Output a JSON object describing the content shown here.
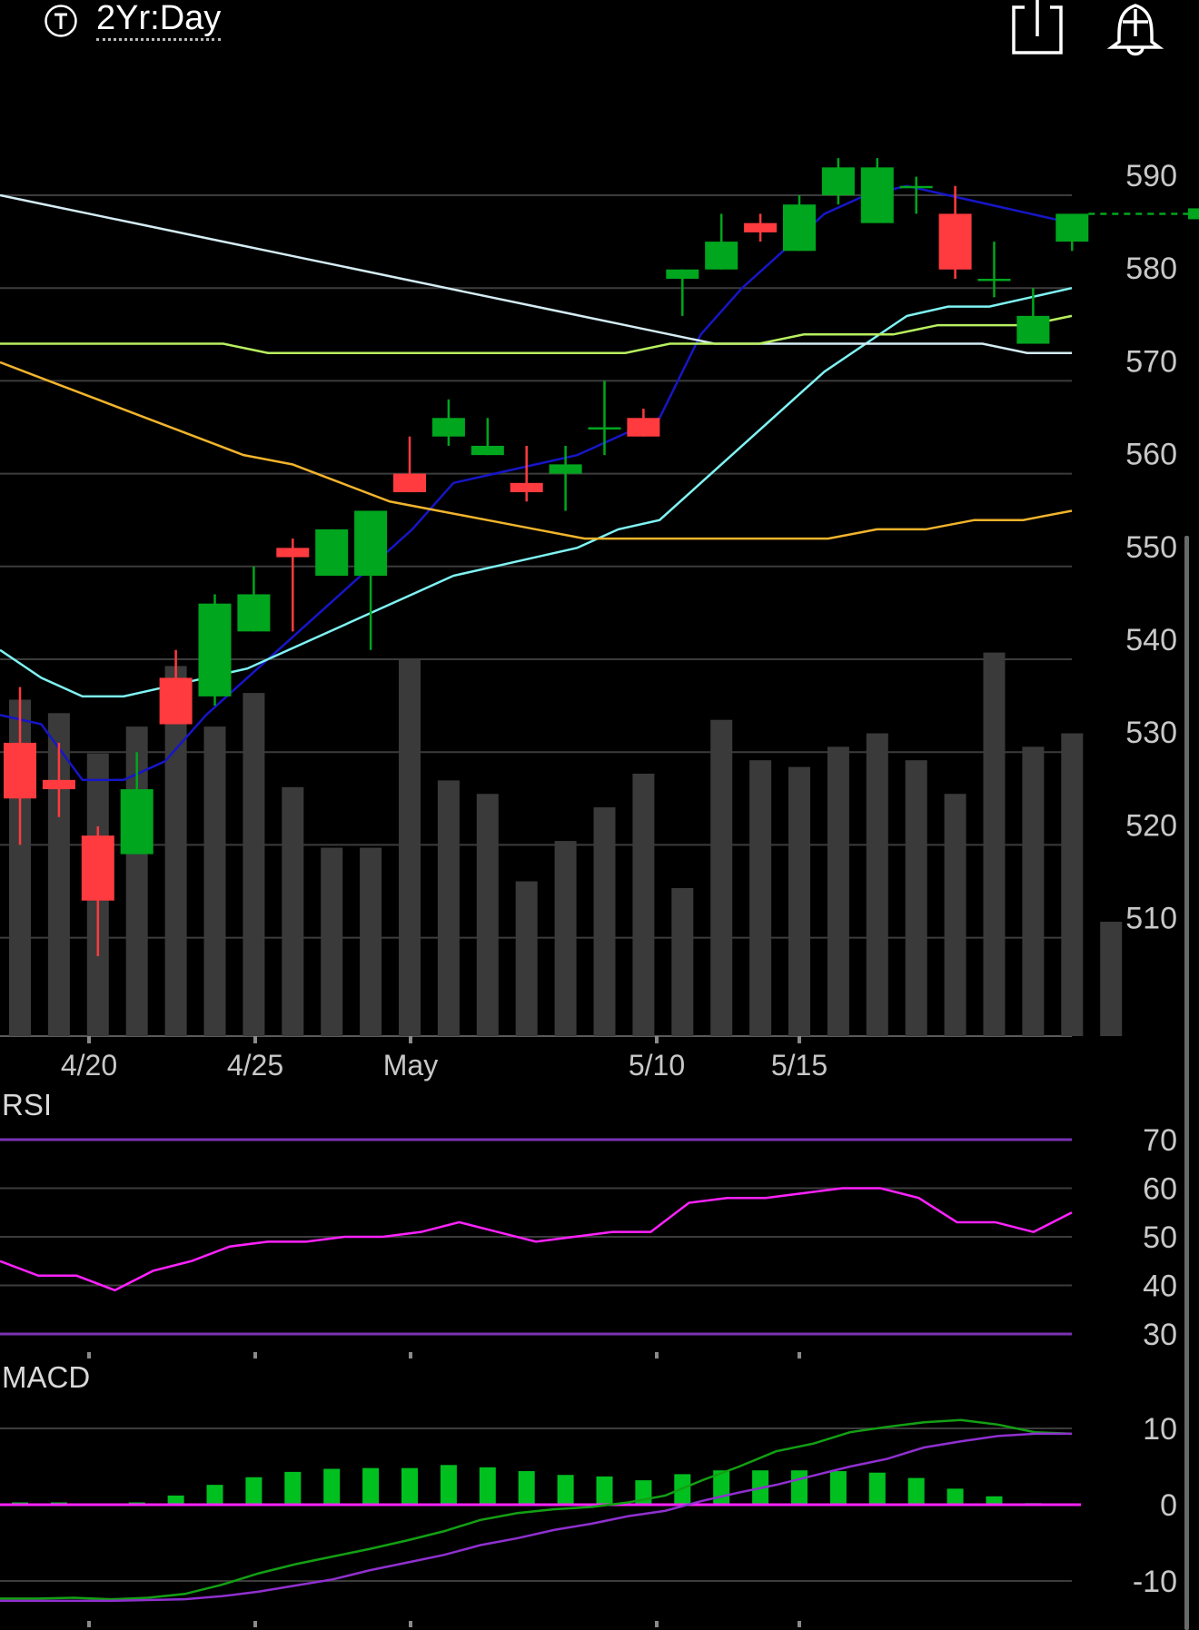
{
  "header": {
    "timeframe_icon": "t-circle-icon",
    "timeframe_label": "2Yr:Day",
    "share_icon": "share-icon",
    "alert_icon": "add-alert-bell-icon"
  },
  "colors": {
    "up": "#00a61e",
    "down": "#ff3b3f",
    "volume": "#3a3a3a",
    "ma_blue": "#1616c8",
    "ma_cyan": "#7ff3f3",
    "ma_white": "#d4ecf4",
    "ma_lime": "#b8f060",
    "ma_orange": "#f2b42c",
    "rsi_line": "#ff22ff",
    "rsi_bounds": "#7a32b4",
    "macd_line": "#13a013",
    "signal_line": "#9030d0",
    "macd_hist": "#00c020",
    "macd_zero": "#ff22ff"
  },
  "chart_data": [
    {
      "type": "candlestick",
      "title": "",
      "x_ticks": [
        "4/20",
        "4/25",
        "May",
        "5/10",
        "5/15"
      ],
      "y_ticks": [
        510,
        520,
        530,
        540,
        550,
        560,
        570,
        580,
        590
      ],
      "ylim": [
        500,
        600
      ],
      "grid": true,
      "last_price_line": 588,
      "candles": [
        {
          "o": 531,
          "h": 537,
          "l": 520,
          "c": 525
        },
        {
          "o": 527,
          "h": 531,
          "l": 523,
          "c": 526
        },
        {
          "o": 521,
          "h": 522,
          "l": 508,
          "c": 514
        },
        {
          "o": 519,
          "h": 530,
          "l": 519,
          "c": 526
        },
        {
          "o": 538,
          "h": 541,
          "l": 534,
          "c": 533
        },
        {
          "o": 536,
          "h": 547,
          "l": 535,
          "c": 546
        },
        {
          "o": 543,
          "h": 550,
          "l": 543,
          "c": 547
        },
        {
          "o": 552,
          "h": 553,
          "l": 543,
          "c": 551
        },
        {
          "o": 549,
          "h": 554,
          "l": 549,
          "c": 554
        },
        {
          "o": 549,
          "h": 556,
          "l": 541,
          "c": 556
        },
        {
          "o": 560,
          "h": 564,
          "l": 558,
          "c": 558
        },
        {
          "o": 564,
          "h": 568,
          "l": 563,
          "c": 566
        },
        {
          "o": 562,
          "h": 566,
          "l": 562,
          "c": 563
        },
        {
          "o": 559,
          "h": 563,
          "l": 557,
          "c": 558
        },
        {
          "o": 560,
          "h": 563,
          "l": 556,
          "c": 561
        },
        {
          "o": 565,
          "h": 570,
          "l": 562,
          "c": 565
        },
        {
          "o": 566,
          "h": 567,
          "l": 564,
          "c": 564
        },
        {
          "o": 581,
          "h": 582,
          "l": 577,
          "c": 582
        },
        {
          "o": 582,
          "h": 588,
          "l": 582,
          "c": 585
        },
        {
          "o": 587,
          "h": 588,
          "l": 585,
          "c": 586
        },
        {
          "o": 584,
          "h": 590,
          "l": 584,
          "c": 589
        },
        {
          "o": 590,
          "h": 594,
          "l": 589,
          "c": 593
        },
        {
          "o": 587,
          "h": 594,
          "l": 587,
          "c": 593
        },
        {
          "o": 591,
          "h": 592,
          "l": 588,
          "c": 591
        },
        {
          "o": 588,
          "h": 591,
          "l": 581,
          "c": 582
        },
        {
          "o": 581,
          "h": 585,
          "l": 579,
          "c": 581
        },
        {
          "o": 574,
          "h": 580,
          "l": 574,
          "c": 577
        },
        {
          "o": 585,
          "h": 588,
          "l": 584,
          "c": 588
        }
      ],
      "volume_pct": [
        50,
        48,
        42,
        46,
        55,
        46,
        51,
        37,
        28,
        28,
        56,
        38,
        36,
        23,
        29,
        34,
        39,
        22,
        47,
        41,
        40,
        43,
        45,
        41,
        36,
        57,
        43,
        45,
        17
      ],
      "moving_averages": [
        {
          "color_key": "ma_blue",
          "values": [
            534,
            533,
            527,
            527,
            529,
            534,
            538,
            542,
            546,
            550,
            554,
            559,
            560,
            561,
            562,
            564,
            566,
            575,
            580,
            584,
            588,
            590,
            591,
            590,
            589,
            588,
            587
          ]
        },
        {
          "color_key": "ma_cyan",
          "values": [
            541,
            538,
            536,
            536,
            537,
            538,
            539,
            541,
            543,
            545,
            547,
            549,
            550,
            551,
            552,
            554,
            555,
            559,
            563,
            567,
            571,
            574,
            577,
            578,
            578,
            579,
            580
          ]
        },
        {
          "color_key": "ma_white",
          "values": [
            590,
            589,
            588,
            587,
            586,
            585,
            584,
            583,
            582,
            581,
            580,
            579,
            578,
            577,
            576,
            575,
            574,
            574,
            574,
            574,
            574,
            574,
            574,
            573,
            573
          ]
        },
        {
          "color_key": "ma_lime",
          "values": [
            574,
            574,
            574,
            574,
            574,
            574,
            573,
            573,
            573,
            573,
            573,
            573,
            573,
            573,
            573,
            574,
            574,
            574,
            575,
            575,
            575,
            576,
            576,
            576,
            577
          ]
        },
        {
          "color_key": "ma_orange",
          "values": [
            572,
            570,
            568,
            566,
            564,
            562,
            561,
            559,
            557,
            556,
            555,
            554,
            553,
            553,
            553,
            553,
            553,
            553,
            554,
            554,
            555,
            555,
            556
          ]
        }
      ]
    },
    {
      "type": "line",
      "title": "RSI",
      "y_ticks": [
        30,
        40,
        50,
        60,
        70
      ],
      "ylim": [
        30,
        70
      ],
      "grid": true,
      "bounds": [
        30,
        70
      ],
      "values": [
        45,
        42,
        42,
        39,
        43,
        45,
        48,
        49,
        49,
        50,
        50,
        51,
        53,
        51,
        49,
        50,
        51,
        51,
        57,
        58,
        58,
        59,
        60,
        60,
        58,
        53,
        53,
        51,
        55
      ]
    },
    {
      "type": "bar",
      "title": "MACD",
      "y_ticks": [
        10,
        0,
        -10
      ],
      "ylim": [
        -15,
        15
      ],
      "grid": true,
      "histogram": [
        0.3,
        0.3,
        0,
        0.3,
        1.2,
        2.6,
        3.6,
        4.3,
        4.7,
        4.8,
        4.8,
        5.2,
        4.9,
        4.4,
        3.9,
        3.7,
        3.2,
        4.0,
        4.5,
        4.5,
        4.5,
        4.4,
        4.2,
        3.5,
        2.1,
        1.1,
        0.2,
        0.1
      ],
      "macd": [
        -12.3,
        -12.3,
        -12.2,
        -12.4,
        -12.2,
        -11.7,
        -10.5,
        -9.0,
        -7.8,
        -6.8,
        -5.8,
        -4.7,
        -3.5,
        -2.0,
        -1.1,
        -0.6,
        -0.3,
        0.3,
        1.2,
        3.2,
        5.0,
        7.0,
        8.0,
        9.5,
        10.2,
        10.8,
        11.1,
        10.5,
        9.5,
        9.3
      ],
      "signal": [
        -12.6,
        -12.6,
        -12.6,
        -12.6,
        -12.5,
        -12.4,
        -12.0,
        -11.4,
        -10.6,
        -9.8,
        -8.6,
        -7.6,
        -6.6,
        -5.3,
        -4.4,
        -3.3,
        -2.5,
        -1.5,
        -0.8,
        0.5,
        1.6,
        2.6,
        3.8,
        5.0,
        6.0,
        7.5,
        8.3,
        9.0,
        9.3,
        9.3
      ]
    }
  ]
}
